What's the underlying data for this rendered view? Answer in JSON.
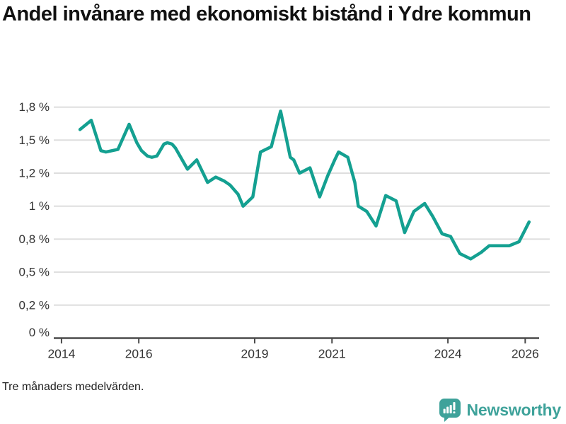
{
  "title": "Andel invånare med ekonomiskt bistånd i Ydre kommun",
  "footnote": "Tre månaders medelvärden.",
  "brand": {
    "name": "Newsworthy",
    "color": "#3EA29A",
    "icon": "bar-chart-speech-bubble-icon"
  },
  "colors": {
    "line": "#14A091",
    "grid": "#dedede",
    "axis": "#4a4a4a",
    "tick_text": "#333333",
    "title_text": "#111111"
  },
  "chart_data": {
    "type": "line",
    "title": "Andel invånare med ekonomiskt bistånd i Ydre kommun",
    "subtitle": "Tre månaders medelvärden.",
    "unit": "%",
    "xlabel": "",
    "ylabel": "",
    "grid": "horizontal",
    "legend": "none",
    "xlim": [
      2013.8,
      2026.36
    ],
    "ylim": [
      0,
      1.812
    ],
    "x_ticks": [
      {
        "v": 2014,
        "label": "2014"
      },
      {
        "v": 2016,
        "label": "2016"
      },
      {
        "v": 2019,
        "label": "2019"
      },
      {
        "v": 2021,
        "label": "2021"
      },
      {
        "v": 2024,
        "label": "2024"
      },
      {
        "v": 2026,
        "label": "2026"
      }
    ],
    "y_ticks": [
      {
        "v": 0,
        "label": "0 %"
      },
      {
        "v": 0.25,
        "label": "0,2 %"
      },
      {
        "v": 0.5,
        "label": "0,5 %"
      },
      {
        "v": 0.75,
        "label": "0,8 %"
      },
      {
        "v": 1,
        "label": "1 %"
      },
      {
        "v": 1.25,
        "label": "1,2 %"
      },
      {
        "v": 1.5,
        "label": "1,5 %"
      },
      {
        "v": 1.75,
        "label": "1,8 %"
      }
    ],
    "series": [
      {
        "name": "Andel invånare med ekonomiskt bistånd i Ydre kommun (%)",
        "color": "#14A091",
        "points": [
          [
            2014.48,
            1.58
          ],
          [
            2014.77,
            1.65
          ],
          [
            2015.02,
            1.42
          ],
          [
            2015.15,
            1.41
          ],
          [
            2015.31,
            1.42
          ],
          [
            2015.46,
            1.43
          ],
          [
            2015.75,
            1.62
          ],
          [
            2015.95,
            1.48
          ],
          [
            2016.07,
            1.42
          ],
          [
            2016.22,
            1.38
          ],
          [
            2016.34,
            1.37
          ],
          [
            2016.47,
            1.38
          ],
          [
            2016.65,
            1.47
          ],
          [
            2016.74,
            1.48
          ],
          [
            2016.86,
            1.47
          ],
          [
            2016.95,
            1.44
          ],
          [
            2017.26,
            1.28
          ],
          [
            2017.5,
            1.35
          ],
          [
            2017.78,
            1.18
          ],
          [
            2017.99,
            1.22
          ],
          [
            2018.21,
            1.19
          ],
          [
            2018.36,
            1.16
          ],
          [
            2018.57,
            1.09
          ],
          [
            2018.7,
            1.0
          ],
          [
            2018.95,
            1.07
          ],
          [
            2019.15,
            1.41
          ],
          [
            2019.43,
            1.45
          ],
          [
            2019.67,
            1.72
          ],
          [
            2019.92,
            1.37
          ],
          [
            2020.01,
            1.35
          ],
          [
            2020.16,
            1.25
          ],
          [
            2020.43,
            1.29
          ],
          [
            2020.68,
            1.07
          ],
          [
            2020.89,
            1.23
          ],
          [
            2021.07,
            1.35
          ],
          [
            2021.17,
            1.41
          ],
          [
            2021.41,
            1.37
          ],
          [
            2021.59,
            1.18
          ],
          [
            2021.68,
            1.0
          ],
          [
            2021.9,
            0.96
          ],
          [
            2022.14,
            0.85
          ],
          [
            2022.39,
            1.08
          ],
          [
            2022.66,
            1.04
          ],
          [
            2022.88,
            0.8
          ],
          [
            2023.12,
            0.96
          ],
          [
            2023.4,
            1.02
          ],
          [
            2023.61,
            0.92
          ],
          [
            2023.85,
            0.79
          ],
          [
            2024.07,
            0.77
          ],
          [
            2024.31,
            0.64
          ],
          [
            2024.59,
            0.6
          ],
          [
            2024.86,
            0.65
          ],
          [
            2025.07,
            0.7
          ],
          [
            2025.32,
            0.7
          ],
          [
            2025.59,
            0.7
          ],
          [
            2025.84,
            0.73
          ],
          [
            2026.1,
            0.88
          ]
        ]
      }
    ]
  }
}
